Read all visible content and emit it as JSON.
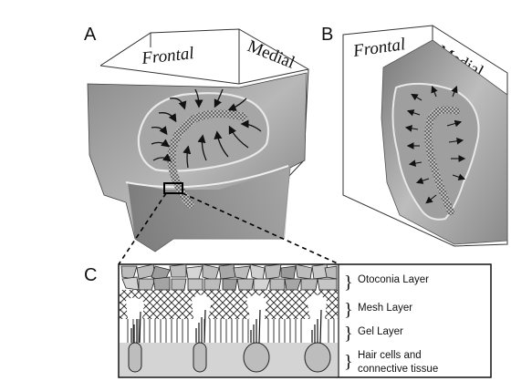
{
  "panels": {
    "a": {
      "letter": "A",
      "front_label": "Frontal",
      "side_label": "Medial"
    },
    "b": {
      "letter": "B",
      "front_label": "Frontal",
      "side_label": "Medial"
    },
    "c": {
      "letter": "C"
    }
  },
  "layers": [
    {
      "label": "Otoconia Layer"
    },
    {
      "label": "Mesh Layer"
    },
    {
      "label": "Gel Layer"
    },
    {
      "label": "Hair cells and",
      "label2": "connective tissue"
    }
  ],
  "colors": {
    "tissue_dark": "#6f6f6f",
    "tissue_mid": "#9a9a9a",
    "tissue_light": "#c8c8c8",
    "gel": "#ffffff",
    "base": "#d4d4d4"
  }
}
